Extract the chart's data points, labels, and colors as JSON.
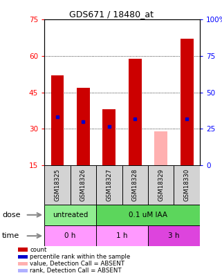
{
  "title": "GDS671 / 18480_at",
  "samples": [
    "GSM18325",
    "GSM18326",
    "GSM18327",
    "GSM18328",
    "GSM18329",
    "GSM18330"
  ],
  "count_values": [
    52,
    47,
    38,
    59,
    0,
    67
  ],
  "absent_count_values": [
    0,
    0,
    0,
    0,
    29,
    0
  ],
  "percentile_values": [
    35,
    33,
    31,
    34,
    0,
    34
  ],
  "ylim_left": [
    15,
    75
  ],
  "ylim_right": [
    0,
    100
  ],
  "yticks_left": [
    15,
    30,
    45,
    60,
    75
  ],
  "yticks_right": [
    0,
    25,
    50,
    75,
    100
  ],
  "ytick_labels_right": [
    "0",
    "25",
    "50",
    "75",
    "100%"
  ],
  "bar_color_present": "#cc0000",
  "bar_color_absent": "#ffb0b0",
  "blue_marker_color": "#0000cc",
  "absent_rank_color": "#b0b0ff",
  "dose_data": [
    {
      "label": "untreated",
      "start": 0,
      "end": 2,
      "color": "#90ee90"
    },
    {
      "label": "0.1 uM IAA",
      "start": 2,
      "end": 6,
      "color": "#5cd65c"
    }
  ],
  "time_data": [
    {
      "label": "0 h",
      "start": 0,
      "end": 2,
      "color": "#ff99ff"
    },
    {
      "label": "1 h",
      "start": 2,
      "end": 4,
      "color": "#ff99ff"
    },
    {
      "label": "3 h",
      "start": 4,
      "end": 6,
      "color": "#dd44dd"
    }
  ],
  "legend_items": [
    {
      "color": "#cc0000",
      "label": "count"
    },
    {
      "color": "#0000cc",
      "label": "percentile rank within the sample"
    },
    {
      "color": "#ffb0b0",
      "label": "value, Detection Call = ABSENT"
    },
    {
      "color": "#b0b0ff",
      "label": "rank, Detection Call = ABSENT"
    }
  ]
}
